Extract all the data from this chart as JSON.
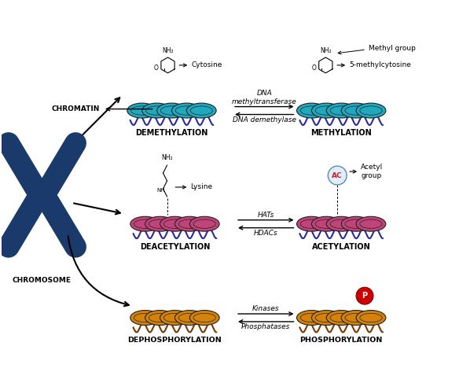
{
  "background": "#ffffff",
  "chromosome_color": "#1a3a6b",
  "teal_nucleosome": "#1fa8be",
  "pink_nucleosome": "#c0447a",
  "orange_nucleosome": "#d4820a",
  "orange_dark": "#b06800",
  "dna_strand_teal": "#2a2a9a",
  "dna_strand_orange": "#7a3800",
  "labels": {
    "chromosome": "CHROMOSOME",
    "chromatin": "CHROMATIN",
    "demethylation": "DEMETHYLATION",
    "methylation": "METHYLATION",
    "deacetylation": "DEACETYLATION",
    "acetylation": "ACETYLATION",
    "dephosphorylation": "DEPHOSPHORYLATION",
    "phosphorylation": "PHOSPHORYLATION",
    "dna_methyl": "DNA\nmethyltransferase",
    "dna_demethyl": "DNA demethylase",
    "hats": "HATs",
    "hdacs": "HDACs",
    "kinases": "Kinases",
    "phosphatases": "Phosphatases",
    "cytosine": "Cytosine",
    "methylcytosine": "5-methylcytosine",
    "methyl_group": "Methyl group",
    "lysine": "Lysine",
    "acetyl_group": "Acetyl\ngroup",
    "ac": "AC",
    "p": "P"
  }
}
